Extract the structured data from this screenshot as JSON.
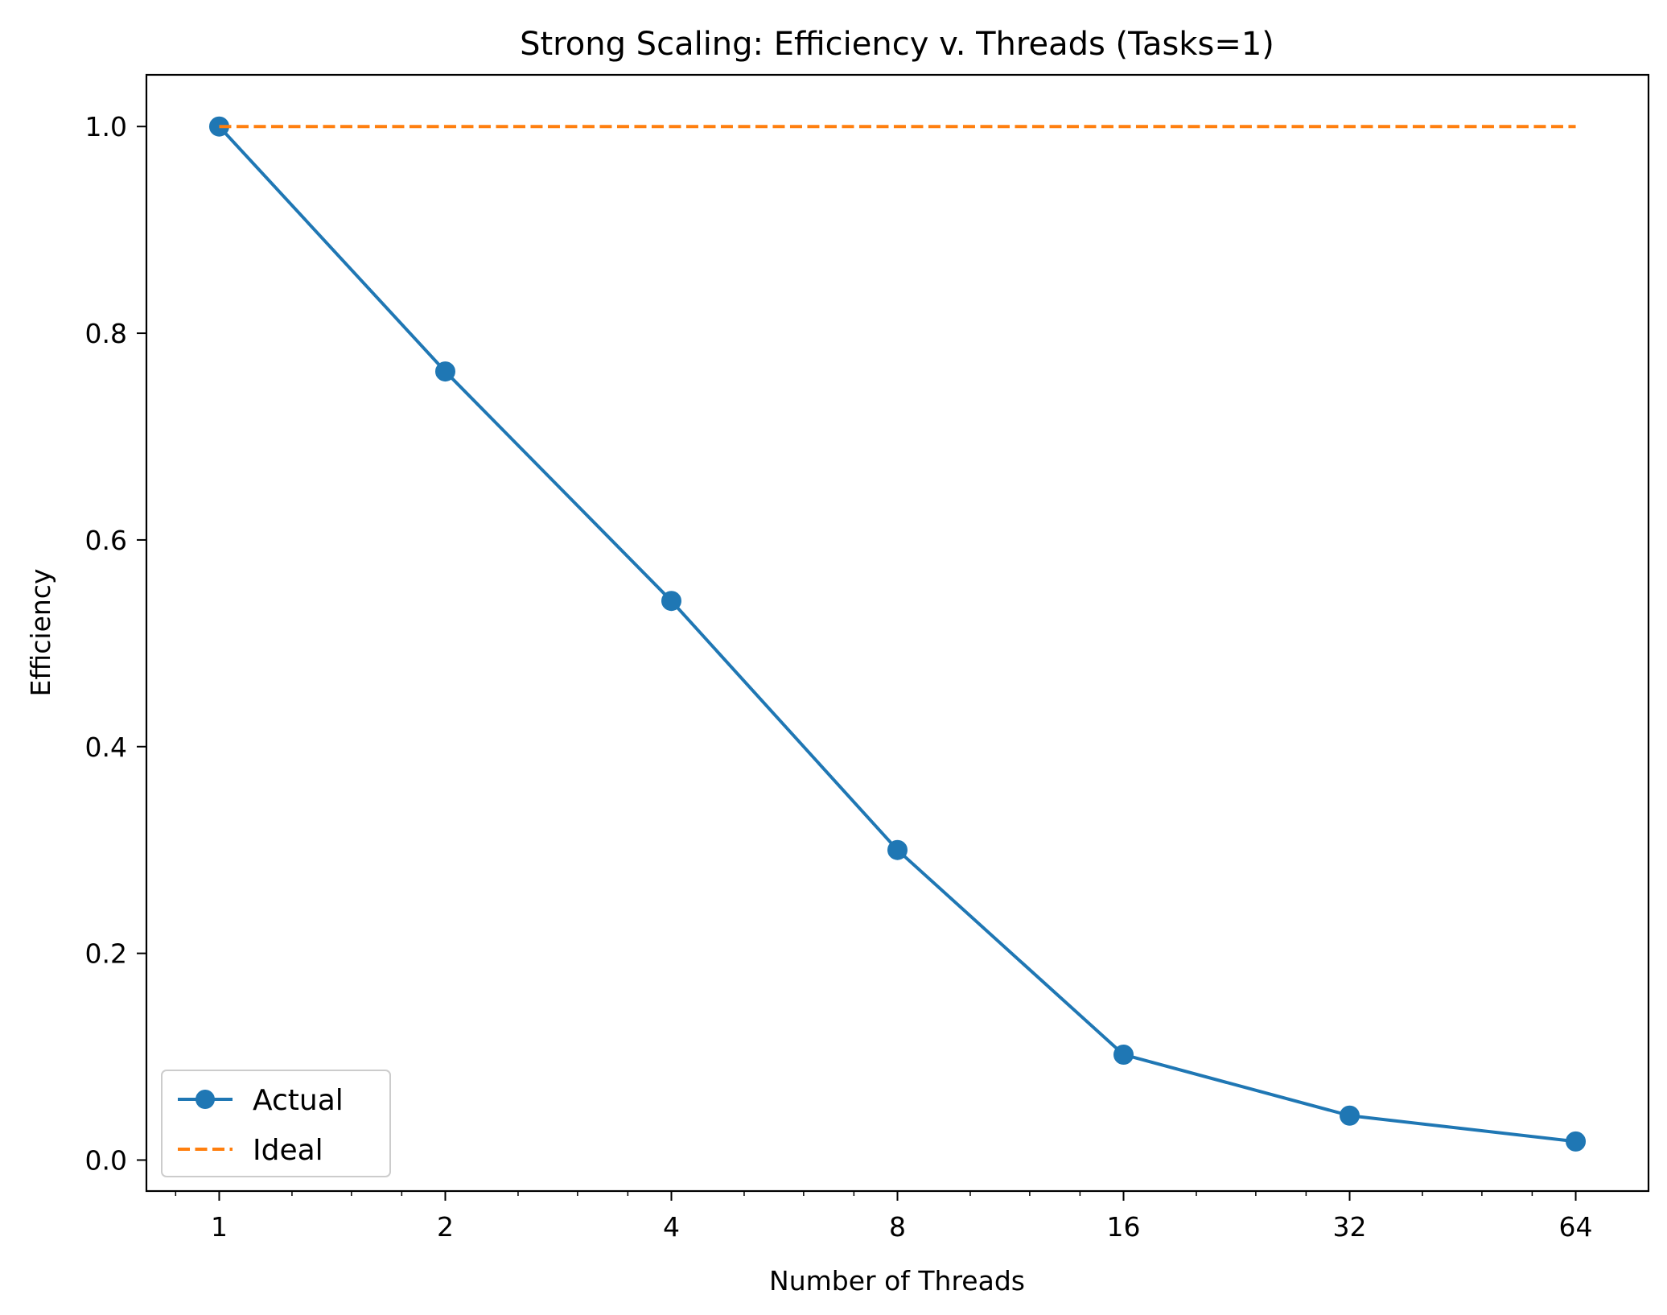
{
  "chart_data": {
    "type": "line",
    "title": "Strong Scaling: Efficiency v. Threads (Tasks=1)",
    "xlabel": "Number of Threads",
    "ylabel": "Efficiency",
    "x_scale": "log2",
    "x": [
      1,
      2,
      4,
      8,
      16,
      32,
      64
    ],
    "x_tick_labels": [
      "1",
      "2",
      "4",
      "8",
      "16",
      "32",
      "64"
    ],
    "y_ticks": [
      0.0,
      0.2,
      0.4,
      0.6,
      0.8,
      1.0
    ],
    "y_tick_labels": [
      "0.0",
      "0.2",
      "0.4",
      "0.6",
      "0.8",
      "1.0"
    ],
    "xlim": [
      0.8,
      80
    ],
    "ylim": [
      -0.03,
      1.05
    ],
    "grid": false,
    "legend_position": "lower-left",
    "series": [
      {
        "name": "Actual",
        "values": [
          1.0,
          0.763,
          0.541,
          0.3,
          0.102,
          0.043,
          0.018
        ],
        "color": "#1f77b4",
        "style": "solid",
        "marker": "circle"
      },
      {
        "name": "Ideal",
        "values": [
          1.0,
          1.0,
          1.0,
          1.0,
          1.0,
          1.0,
          1.0
        ],
        "color": "#ff7f0e",
        "style": "dashed",
        "marker": "none"
      }
    ]
  }
}
